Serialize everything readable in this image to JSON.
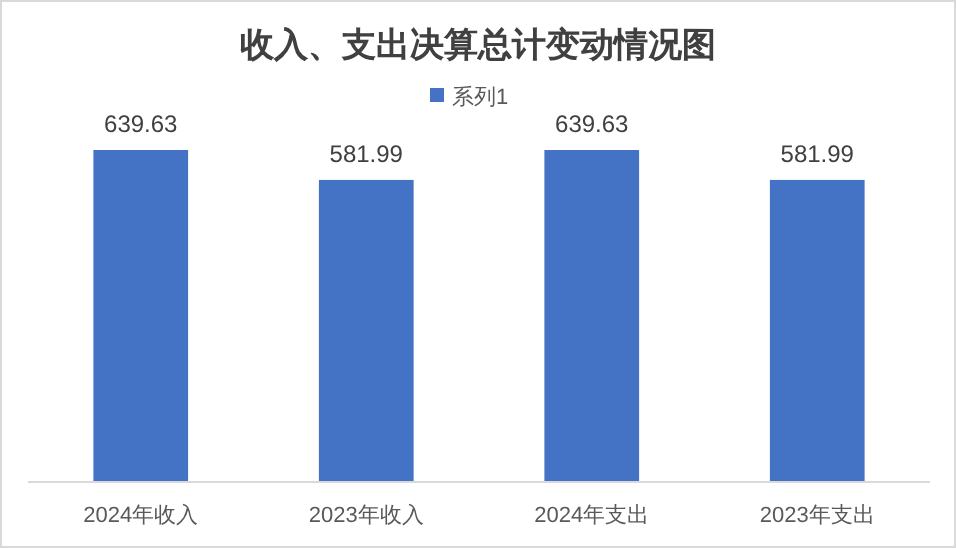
{
  "chart_data": {
    "type": "bar",
    "title": "收入、支出决算总计变动情况图",
    "categories": [
      "2024年收入",
      "2023年收入",
      "2024年支出",
      "2023年支出"
    ],
    "series": [
      {
        "name": "系列1",
        "color": "#4472c4",
        "values": [
          639.63,
          581.99,
          639.63,
          581.99
        ]
      }
    ],
    "tick_labels": "x",
    "data_labels": true,
    "legend": "top"
  }
}
